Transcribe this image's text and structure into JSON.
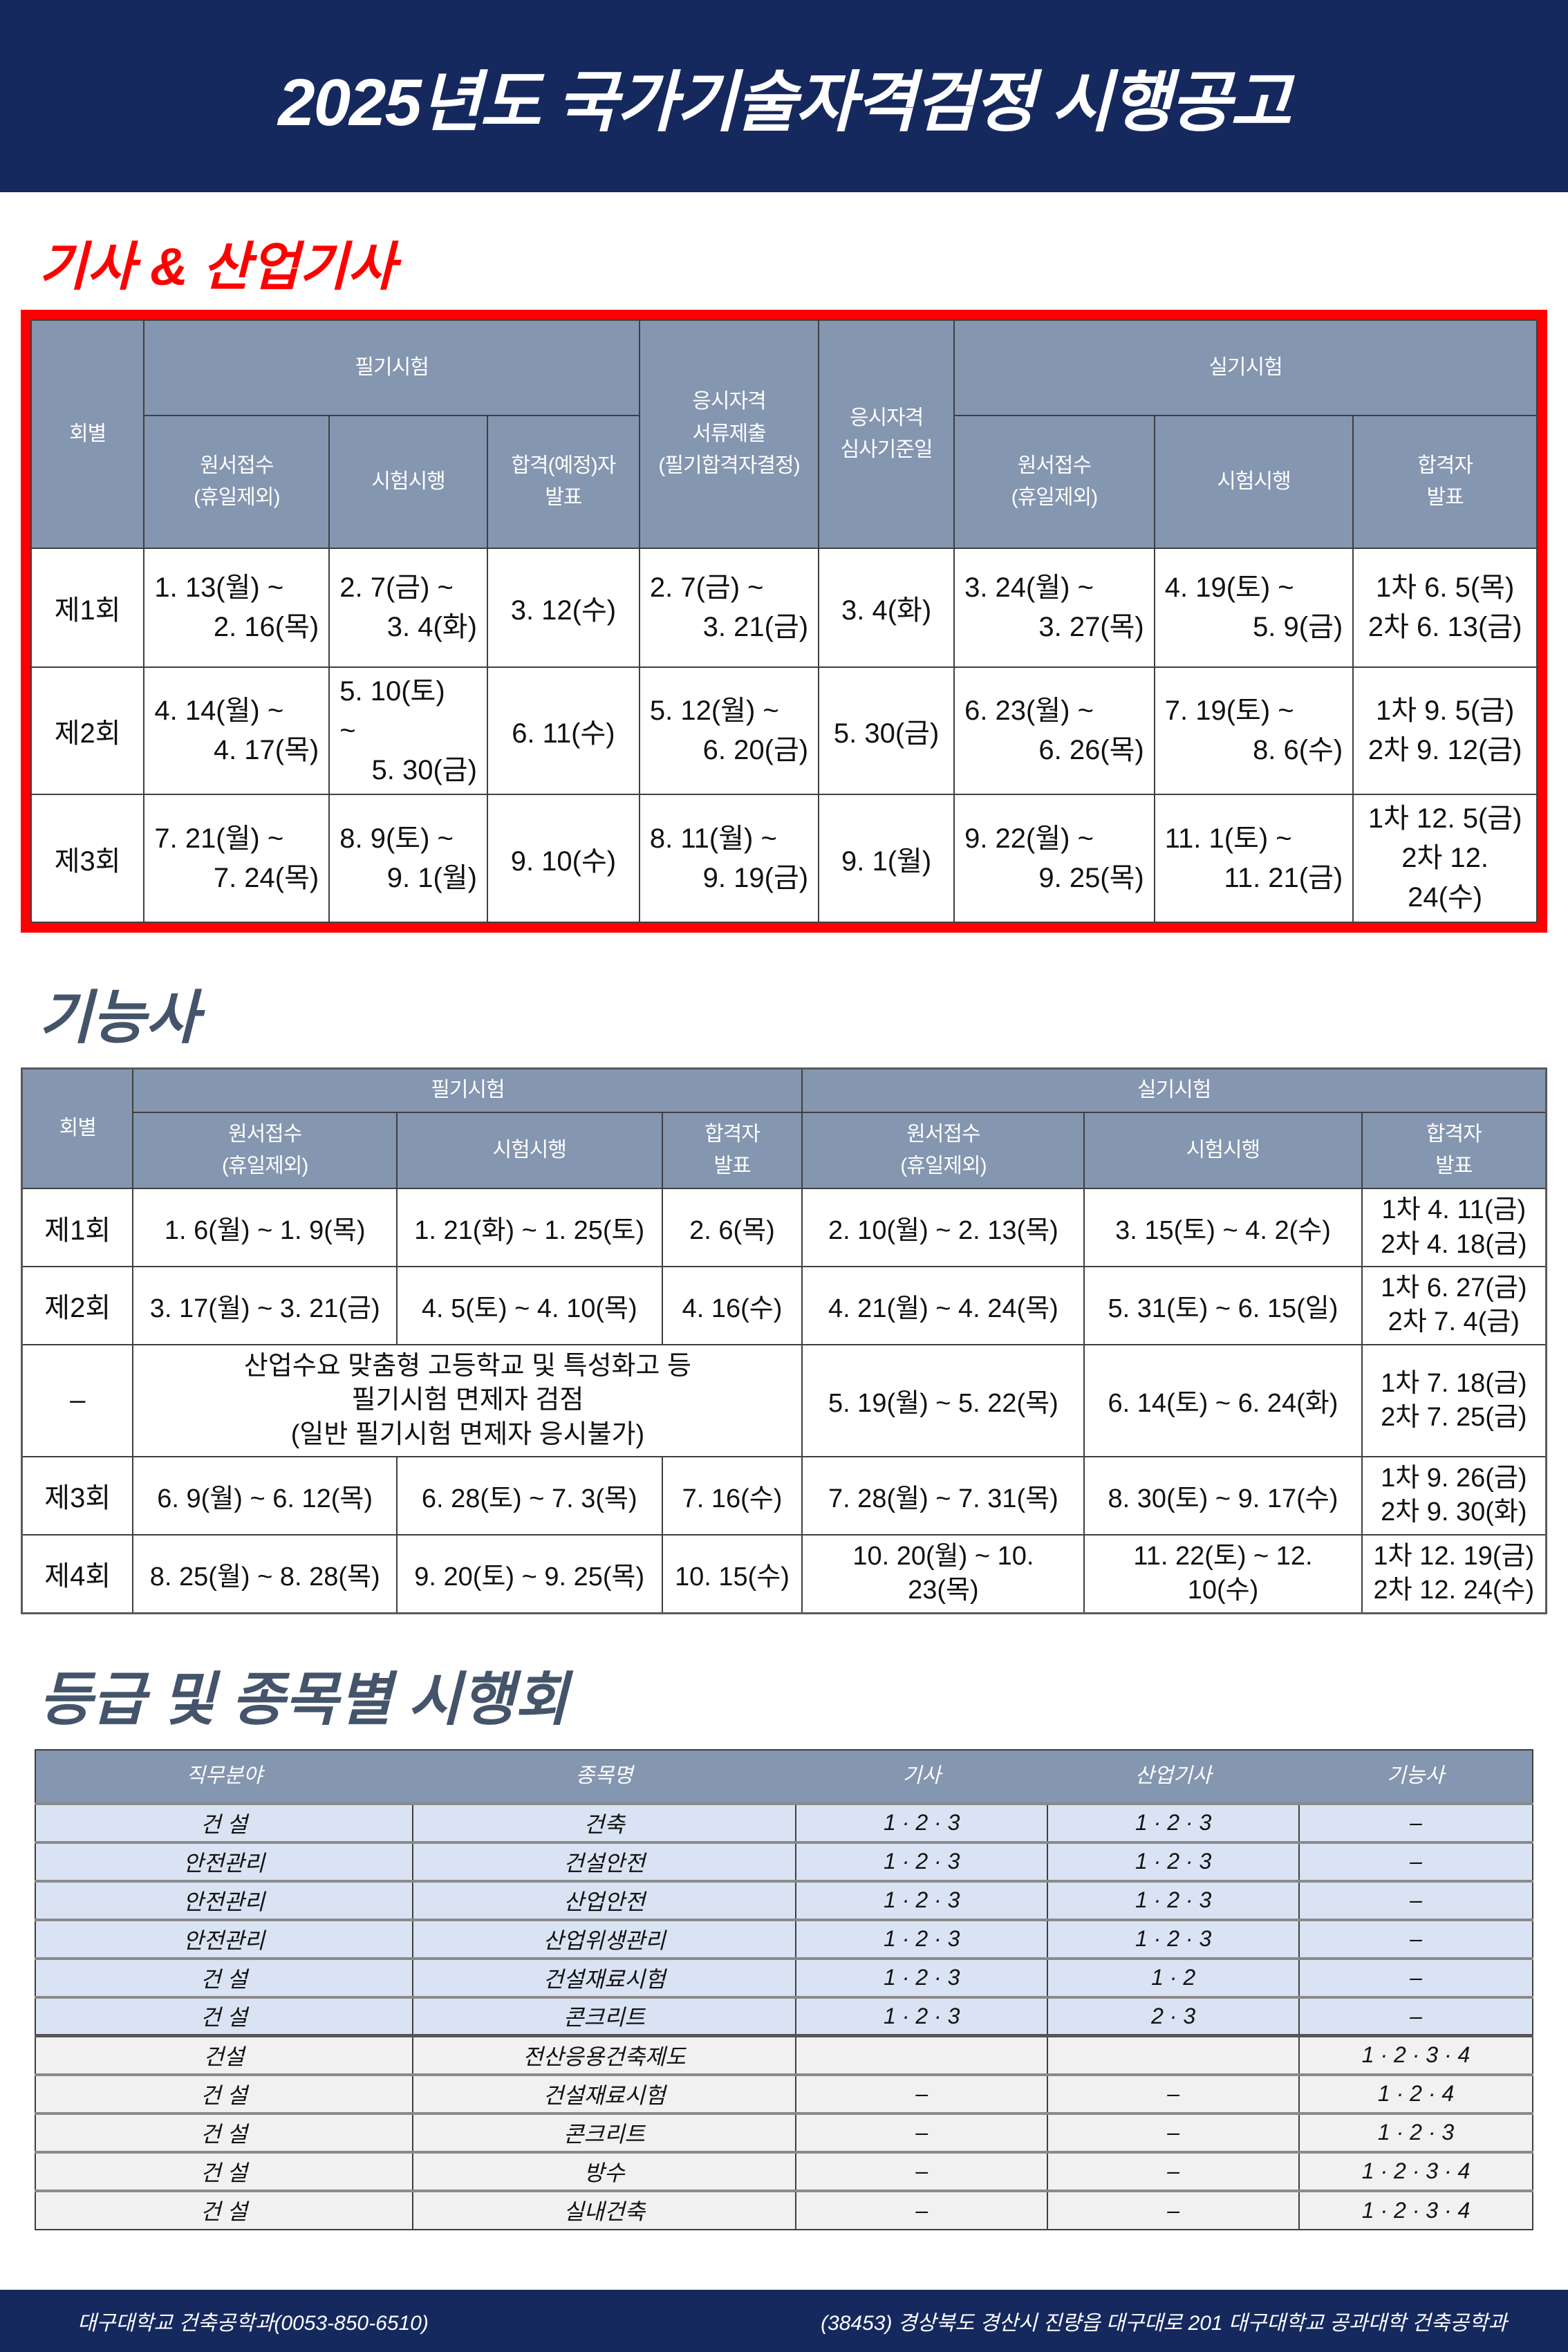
{
  "colors": {
    "accent_red": "#ff0000",
    "banner_navy": "#15295e",
    "table_header_blue_gray": "#8496b0",
    "row_light_blue": "#dae3f3",
    "row_light_gray": "#f1f1f1",
    "section_heading_text": "#44546a"
  },
  "title": "2025년도 국가기술자격검정 시행공고",
  "kisa": {
    "heading": "기사 & 산업기사",
    "header": {
      "round": "회별",
      "written_group": "필기시험",
      "doc_submit": "응시자격\n서류제출\n(필기합격자결정)",
      "review_date": "응시자격\n심사기준일",
      "practical_group": "실기시험",
      "sub": [
        "원서접수\n(휴일제외)",
        "시험시행",
        "합격(예정)자\n발표",
        "원서접수\n(휴일제외)",
        "시험시행",
        "합격자\n발표"
      ]
    },
    "rows": [
      {
        "round": "제1회",
        "cells": [
          [
            "1. 13(월) ~",
            "2. 16(목)"
          ],
          [
            "2. 7(금) ~",
            "3. 4(화)"
          ],
          "3. 12(수)",
          [
            "2. 7(금) ~",
            "3. 21(금)"
          ],
          "3. 4(화)",
          [
            "3. 24(월) ~",
            "3. 27(목)"
          ],
          [
            "4. 19(토) ~",
            "5. 9(금)"
          ],
          [
            "1차 6. 5(목)",
            "2차 6. 13(금)"
          ]
        ]
      },
      {
        "round": "제2회",
        "cells": [
          [
            "4. 14(월) ~",
            "4. 17(목)"
          ],
          [
            "5. 10(토)",
            "~",
            "5. 30(금)"
          ],
          "6. 11(수)",
          [
            "5. 12(월) ~",
            "6. 20(금)"
          ],
          "5. 30(금)",
          [
            "6. 23(월) ~",
            "6. 26(목)"
          ],
          [
            "7. 19(토) ~",
            "8. 6(수)"
          ],
          [
            "1차 9. 5(금)",
            "2차 9. 12(금)"
          ]
        ]
      },
      {
        "round": "제3회",
        "cells": [
          [
            "7. 21(월) ~",
            "7. 24(목)"
          ],
          [
            "8. 9(토) ~",
            "9. 1(월)"
          ],
          "9. 10(수)",
          [
            "8. 11(월) ~",
            "9. 19(금)"
          ],
          "9. 1(월)",
          [
            "9. 22(월) ~",
            "9. 25(목)"
          ],
          [
            "11. 1(토) ~",
            "11. 21(금)"
          ],
          [
            "1차 12. 5(금)",
            "2차 12. 24(수)"
          ]
        ]
      }
    ]
  },
  "gineungsa": {
    "heading": "기능사",
    "header": {
      "round": "회별",
      "written_group": "필기시험",
      "practical_group": "실기시험",
      "sub": [
        "원서접수\n(휴일제외)",
        "시험시행",
        "합격자\n발표",
        "원서접수\n(휴일제외)",
        "시험시행",
        "합격자\n발표"
      ]
    },
    "rows": [
      {
        "round": "제1회",
        "cells": [
          "1. 6(월) ~ 1. 9(목)",
          "1. 21(화) ~ 1. 25(토)",
          "2. 6(목)",
          "2. 10(월) ~ 2. 13(목)",
          "3. 15(토) ~ 4. 2(수)",
          [
            "1차 4. 11(금)",
            "2차 4. 18(금)"
          ]
        ]
      },
      {
        "round": "제2회",
        "cells": [
          "3. 17(월) ~ 3. 21(금)",
          "4. 5(토) ~ 4. 10(목)",
          "4. 16(수)",
          "4. 21(월) ~ 4. 24(목)",
          "5. 31(토) ~ 6. 15(일)",
          [
            "1차 6. 27(금)",
            "2차 7. 4(금)"
          ]
        ]
      },
      {
        "round": "–",
        "note": [
          "산업수요 맞춤형 고등학교 및 특성화고 등",
          "필기시험 면제자 검점",
          "(일반 필기시험 면제자 응시불가)"
        ],
        "cells": [
          "5. 19(월) ~ 5. 22(목)",
          "6. 14(토) ~ 6. 24(화)",
          [
            "1차 7. 18(금)",
            "2차 7. 25(금)"
          ]
        ]
      },
      {
        "round": "제3회",
        "cells": [
          "6. 9(월) ~ 6. 12(목)",
          "6. 28(토) ~ 7. 3(목)",
          "7. 16(수)",
          "7. 28(월) ~ 7. 31(목)",
          "8. 30(토) ~ 9. 17(수)",
          [
            "1차 9. 26(금)",
            "2차 9. 30(화)"
          ]
        ]
      },
      {
        "round": "제4회",
        "cells": [
          "8. 25(월) ~ 8. 28(목)",
          "9. 20(토) ~ 9. 25(목)",
          "10. 15(수)",
          [
            "10. 20(월) ~ 10.",
            "23(목)"
          ],
          [
            "11. 22(토) ~ 12.",
            "10(수)"
          ],
          [
            "1차 12. 19(금)",
            "2차 12. 24(수)"
          ]
        ]
      }
    ]
  },
  "deunggeup": {
    "heading": "등급 및 종목별 시행회",
    "columns": [
      "직무분야",
      "종목명",
      "기사",
      "산업기사",
      "기능사"
    ],
    "rows": [
      [
        "건 설",
        "건축",
        "1 · 2 · 3",
        "1 · 2 · 3",
        "–"
      ],
      [
        "안전관리",
        "건설안전",
        "1 · 2 · 3",
        "1 · 2 · 3",
        "–"
      ],
      [
        "안전관리",
        "산업안전",
        "1 · 2 · 3",
        "1 · 2 · 3",
        "–"
      ],
      [
        "안전관리",
        "산업위생관리",
        "1 · 2 · 3",
        "1 · 2 · 3",
        "–"
      ],
      [
        "건 설",
        "건설재료시험",
        "1 · 2 · 3",
        "1 · 2",
        "–"
      ],
      [
        "건 설",
        "콘크리트",
        "1 · 2 · 3",
        "2 · 3",
        "–"
      ],
      [
        "건설",
        "전산응용건축제도",
        "",
        "",
        "1 · 2 · 3 · 4"
      ],
      [
        "건 설",
        "건설재료시험",
        "–",
        "–",
        "1 · 2 · 4"
      ],
      [
        "건 설",
        "콘크리트",
        "–",
        "–",
        "1 · 2 · 3"
      ],
      [
        "건 설",
        "방수",
        "–",
        "–",
        "1 · 2 · 3 · 4"
      ],
      [
        "건 설",
        "실내건축",
        "–",
        "–",
        "1 · 2 · 3 · 4"
      ]
    ]
  },
  "footer": {
    "left": "대구대학교 건축공학과(0053-850-6510)",
    "right": "(38453) 경상북도 경산시 진량읍 대구대로 201 대구대학교 공과대학 건축공학과"
  }
}
